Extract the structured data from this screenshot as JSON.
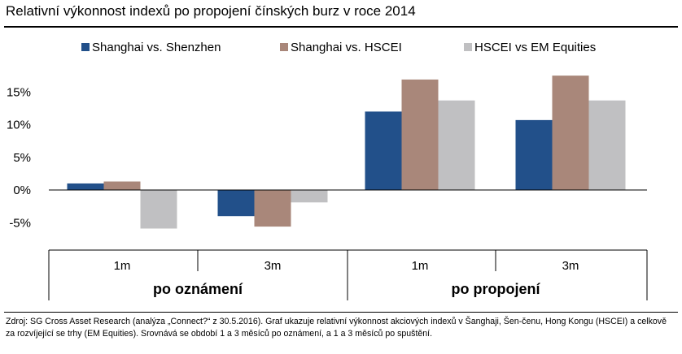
{
  "title": "Relativní výkonnost indexů po propojení čínských burz v roce 2014",
  "source": "Zdroj: SG Cross Asset Research (analýza „Connect?“ z 30.5.2016). Graf ukazuje relativní výkonnost akciových indexů v Šanghaji, Šen-čenu, Hong Kongu (HSCEI) a celkově za rozvíjející se trhy (EM Equities). Srovnává se období 1 a 3 měsíců po oznámení, a 1 a 3 měsíců po spuštění.",
  "chart_data": {
    "type": "bar",
    "title": "Relativní výkonnost indexů po propojení čínských burz v roce 2014",
    "categories": [
      "1m",
      "3m",
      "1m",
      "3m"
    ],
    "groups": [
      {
        "label": "po oznámení",
        "categories": [
          "1m",
          "3m"
        ]
      },
      {
        "label": "po propojení",
        "categories": [
          "1m",
          "3m"
        ]
      }
    ],
    "series": [
      {
        "name": "Shanghai vs. Shenzhen",
        "color": "#22508a",
        "values": [
          1.0,
          -4.0,
          12.0,
          10.7
        ]
      },
      {
        "name": "Shanghai vs. HSCEI",
        "color": "#a9877a",
        "values": [
          1.3,
          -5.6,
          16.9,
          17.5
        ]
      },
      {
        "name": "HSCEI vs EM Equities",
        "color": "#c0c0c2",
        "values": [
          -5.9,
          -1.9,
          13.7,
          13.7
        ]
      }
    ],
    "yticks": [
      "-5%",
      "0%",
      "5%",
      "10%",
      "15%"
    ],
    "ytick_values": [
      -5,
      0,
      5,
      10,
      15
    ],
    "ylim": [
      -8,
      18
    ],
    "grid": false,
    "legend_position": "top"
  }
}
